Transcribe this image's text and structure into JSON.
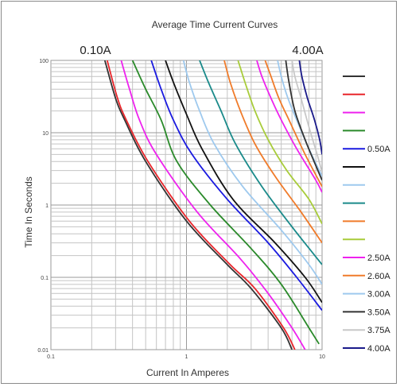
{
  "chart_data": {
    "type": "line",
    "title": "Average Time Current Curves",
    "range_left": "0.10A",
    "range_right": "4.00A",
    "xlabel": "Current In Amperes",
    "ylabel": "Time In Seconds",
    "x_scale": "log",
    "y_scale": "log",
    "xlim": [
      0.1,
      10
    ],
    "ylim": [
      0.01,
      100
    ],
    "x_ticks": [
      "0.1",
      "1",
      "10"
    ],
    "y_ticks": [
      "100",
      "10",
      "1",
      "0.1",
      "0.01"
    ],
    "grid": true,
    "legend_placement": "right",
    "series": [
      {
        "name": "",
        "color": "#333333",
        "points": [
          [
            0.25,
            100
          ],
          [
            0.3,
            30
          ],
          [
            0.35,
            15
          ],
          [
            0.5,
            4
          ],
          [
            1.0,
            0.6
          ],
          [
            2.0,
            0.15
          ],
          [
            3.0,
            0.07
          ],
          [
            5.0,
            0.02
          ],
          [
            6.0,
            0.01
          ]
        ]
      },
      {
        "name": "",
        "color": "#e8252a",
        "points": [
          [
            0.26,
            100
          ],
          [
            0.31,
            30
          ],
          [
            0.36,
            15
          ],
          [
            0.52,
            4
          ],
          [
            1.05,
            0.6
          ],
          [
            2.1,
            0.15
          ],
          [
            3.2,
            0.07
          ],
          [
            5.2,
            0.02
          ],
          [
            6.3,
            0.01
          ]
        ]
      },
      {
        "name": "",
        "color": "#ee22ee",
        "points": [
          [
            0.33,
            100
          ],
          [
            0.38,
            40
          ],
          [
            0.45,
            15
          ],
          [
            0.6,
            5
          ],
          [
            1.2,
            0.8
          ],
          [
            2.5,
            0.18
          ],
          [
            4.0,
            0.06
          ],
          [
            6.0,
            0.02
          ],
          [
            7.5,
            0.01
          ]
        ]
      },
      {
        "name": "",
        "color": "#2a8a2a",
        "points": [
          [
            0.4,
            100
          ],
          [
            0.5,
            40
          ],
          [
            0.65,
            15
          ],
          [
            0.85,
            4
          ],
          [
            1.5,
            1.0
          ],
          [
            3.0,
            0.25
          ],
          [
            5.0,
            0.08
          ],
          [
            8.0,
            0.02
          ],
          [
            9.5,
            0.012
          ]
        ]
      },
      {
        "name": "0.50A",
        "color": "#1a1ae0",
        "points": [
          [
            0.55,
            100
          ],
          [
            0.65,
            40
          ],
          [
            0.8,
            15
          ],
          [
            1.1,
            5
          ],
          [
            2.0,
            1.2
          ],
          [
            4.0,
            0.3
          ],
          [
            6.5,
            0.1
          ],
          [
            10,
            0.035
          ]
        ]
      },
      {
        "name": "",
        "color": "#111111",
        "points": [
          [
            0.7,
            100
          ],
          [
            0.8,
            50
          ],
          [
            1.0,
            18
          ],
          [
            1.3,
            6
          ],
          [
            2.2,
            1.2
          ],
          [
            4.5,
            0.3
          ],
          [
            7.5,
            0.1
          ],
          [
            10,
            0.045
          ]
        ]
      },
      {
        "name": "",
        "color": "#9ec9ee",
        "points": [
          [
            0.95,
            100
          ],
          [
            1.05,
            50
          ],
          [
            1.25,
            20
          ],
          [
            1.6,
            7
          ],
          [
            2.6,
            1.8
          ],
          [
            5.0,
            0.45
          ],
          [
            8.0,
            0.15
          ],
          [
            10,
            0.08
          ]
        ]
      },
      {
        "name": "",
        "color": "#1a8a8a",
        "points": [
          [
            1.25,
            100
          ],
          [
            1.45,
            50
          ],
          [
            1.8,
            20
          ],
          [
            2.3,
            7
          ],
          [
            3.6,
            1.8
          ],
          [
            6.0,
            0.5
          ],
          [
            10,
            0.15
          ]
        ]
      },
      {
        "name": "",
        "color": "#f07b2a",
        "points": [
          [
            1.9,
            100
          ],
          [
            2.1,
            50
          ],
          [
            2.5,
            20
          ],
          [
            3.2,
            7
          ],
          [
            4.5,
            2.5
          ],
          [
            7.0,
            0.8
          ],
          [
            10,
            0.3
          ]
        ]
      },
      {
        "name": "",
        "color": "#a8cc3a",
        "points": [
          [
            2.4,
            100
          ],
          [
            2.7,
            50
          ],
          [
            3.2,
            20
          ],
          [
            4.0,
            8
          ],
          [
            5.5,
            3
          ],
          [
            8.0,
            1.2
          ],
          [
            10,
            0.55
          ]
        ]
      },
      {
        "name": "2.50A",
        "color": "#ee22ee",
        "points": [
          [
            3.3,
            100
          ],
          [
            3.6,
            60
          ],
          [
            4.2,
            30
          ],
          [
            5.0,
            15
          ],
          [
            6.5,
            6
          ],
          [
            9.0,
            2.2
          ],
          [
            10,
            1.5
          ]
        ]
      },
      {
        "name": "2.60A",
        "color": "#f07b2a",
        "points": [
          [
            3.8,
            100
          ],
          [
            4.2,
            60
          ],
          [
            4.8,
            30
          ],
          [
            5.8,
            14
          ],
          [
            7.5,
            5
          ],
          [
            10,
            1.8
          ]
        ]
      },
      {
        "name": "3.00A",
        "color": "#9ec9ee",
        "points": [
          [
            4.7,
            100
          ],
          [
            5.0,
            60
          ],
          [
            5.6,
            30
          ],
          [
            6.5,
            15
          ],
          [
            8.0,
            6
          ],
          [
            10,
            2.5
          ]
        ]
      },
      {
        "name": "3.50A",
        "color": "#333333",
        "points": [
          [
            5.4,
            100
          ],
          [
            5.7,
            50
          ],
          [
            6.3,
            20
          ],
          [
            7.5,
            8
          ],
          [
            9.0,
            3.5
          ],
          [
            10,
            2.2
          ]
        ]
      },
      {
        "name": "3.75A",
        "color": "#c8c8c8",
        "points": [
          [
            6.0,
            100
          ],
          [
            6.3,
            60
          ],
          [
            7.0,
            30
          ],
          [
            8.0,
            12
          ],
          [
            9.2,
            5
          ],
          [
            10,
            2.8
          ]
        ]
      },
      {
        "name": "4.00A",
        "color": "#1a1a8a",
        "points": [
          [
            6.8,
            100
          ],
          [
            7.1,
            60
          ],
          [
            7.8,
            30
          ],
          [
            8.8,
            15
          ],
          [
            9.6,
            8
          ],
          [
            10,
            5
          ]
        ]
      }
    ]
  }
}
